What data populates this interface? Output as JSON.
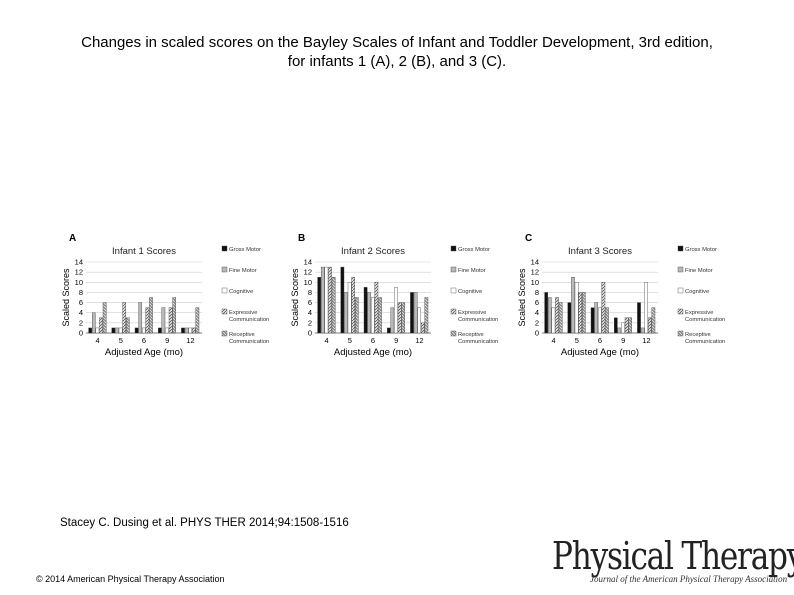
{
  "slide": {
    "title_line1": "Changes in scaled scores on the Bayley Scales of Infant and Toddler Development, 3rd edition,",
    "title_line2": "for infants 1 (A), 2 (B), and 3 (C).",
    "citation": "Stacey C. Dusing et al. PHYS THER 2014;94:1508-1516",
    "copyright": "© 2014 American Physical Therapy Association",
    "logo_main": "Physical Therapy",
    "logo_sub": "Journal of the American Physical Therapy Association"
  },
  "chart_data": [
    {
      "type": "bar",
      "panel_label": "A",
      "title": "Infant 1 Scores",
      "xlabel": "Adjusted Age (mo)",
      "ylabel": "Scaled Scores",
      "ylim": [
        0,
        14
      ],
      "yticks": [
        0,
        2,
        4,
        6,
        8,
        10,
        12,
        14
      ],
      "grid": true,
      "legend_position": "right",
      "categories": [
        "4",
        "5",
        "6",
        "9",
        "12"
      ],
      "series": [
        {
          "name": "Gross Motor",
          "values": [
            1,
            1,
            1,
            1,
            1
          ]
        },
        {
          "name": "Fine Motor",
          "values": [
            4,
            1,
            6,
            5,
            1
          ]
        },
        {
          "name": "Cognitive",
          "values": [
            1,
            1,
            1,
            1,
            1
          ]
        },
        {
          "name": "Expressive Communication",
          "values": [
            3,
            6,
            5,
            5,
            1
          ]
        },
        {
          "name": "Receptive Communication",
          "values": [
            6,
            3,
            7,
            7,
            5
          ]
        }
      ]
    },
    {
      "type": "bar",
      "panel_label": "B",
      "title": "Infant 2 Scores",
      "xlabel": "Adjusted Age (mo)",
      "ylabel": "Scaled Scores",
      "ylim": [
        0,
        14
      ],
      "yticks": [
        0,
        2,
        4,
        6,
        8,
        10,
        12,
        14
      ],
      "grid": true,
      "legend_position": "right",
      "categories": [
        "4",
        "5",
        "6",
        "9",
        "12"
      ],
      "series": [
        {
          "name": "Gross Motor",
          "values": [
            11,
            13,
            9,
            1,
            8
          ]
        },
        {
          "name": "Fine Motor",
          "values": [
            13,
            8,
            8,
            5,
            8
          ]
        },
        {
          "name": "Cognitive",
          "values": [
            13,
            10,
            7,
            9,
            5
          ]
        },
        {
          "name": "Expressive Communication",
          "values": [
            13,
            11,
            10,
            6,
            2
          ]
        },
        {
          "name": "Receptive Communication",
          "values": [
            11,
            7,
            7,
            6,
            7
          ]
        }
      ]
    },
    {
      "type": "bar",
      "panel_label": "C",
      "title": "Infant 3 Scores",
      "xlabel": "Adjusted Age (mo)",
      "ylabel": "Scaled Scores",
      "ylim": [
        0,
        14
      ],
      "yticks": [
        0,
        2,
        4,
        6,
        8,
        10,
        12,
        14
      ],
      "grid": true,
      "legend_position": "right",
      "categories": [
        "4",
        "5",
        "6",
        "9",
        "12"
      ],
      "series": [
        {
          "name": "Gross Motor",
          "values": [
            8,
            6,
            5,
            3,
            6
          ]
        },
        {
          "name": "Fine Motor",
          "values": [
            7,
            11,
            6,
            1,
            1
          ]
        },
        {
          "name": "Cognitive",
          "values": [
            5,
            10,
            5,
            2,
            10
          ]
        },
        {
          "name": "Expressive Communication",
          "values": [
            7,
            8,
            10,
            3,
            3
          ]
        },
        {
          "name": "Receptive Communication",
          "values": [
            6,
            8,
            5,
            3,
            5
          ]
        }
      ]
    }
  ]
}
